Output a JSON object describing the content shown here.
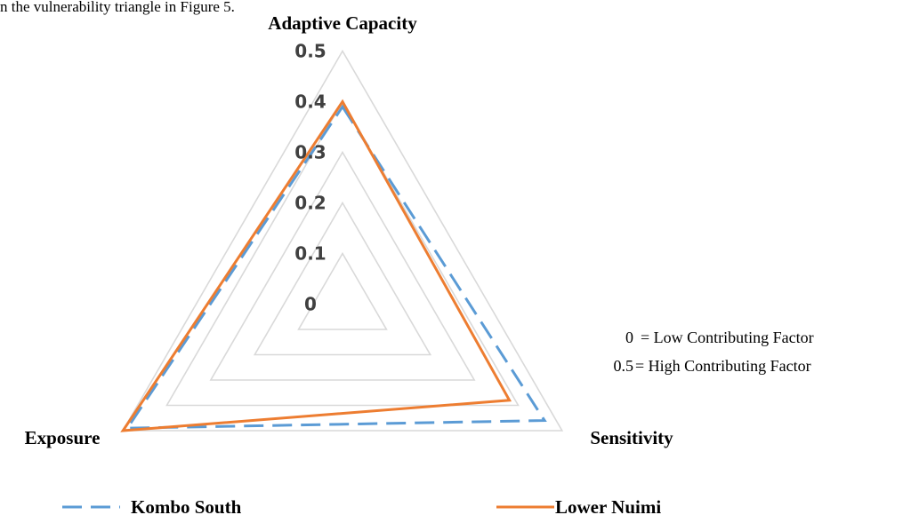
{
  "caption_fragment": "n the vulnerability triangle in Figure 5.",
  "chart_data": {
    "type": "radar",
    "title": "",
    "axes": [
      "Adaptive Capacity",
      "Sensitivity",
      "Exposure"
    ],
    "rlim": [
      0,
      0.5
    ],
    "ticks": [
      "0",
      "0.1",
      "0.2",
      "0.3",
      "0.4",
      "0.5"
    ],
    "tick_values": [
      0,
      0.1,
      0.2,
      0.3,
      0.4,
      0.5
    ],
    "grid": true,
    "legend_position": "bottom",
    "series": [
      {
        "name": "Kombo South",
        "values": [
          0.39,
          0.46,
          0.49
        ],
        "color": "#5b9bd5",
        "style": "dashed"
      },
      {
        "name": "Lower Nuimi",
        "values": [
          0.4,
          0.38,
          0.5
        ],
        "color": "#ed7d31",
        "style": "solid"
      }
    ]
  },
  "notes": [
    {
      "key": "0",
      "text": "= Low Contributing Factor"
    },
    {
      "key": "0.5",
      "text": "= High Contributing Factor"
    }
  ],
  "colors": {
    "grid": "#d9d9d9",
    "tick_text": "#404040"
  }
}
